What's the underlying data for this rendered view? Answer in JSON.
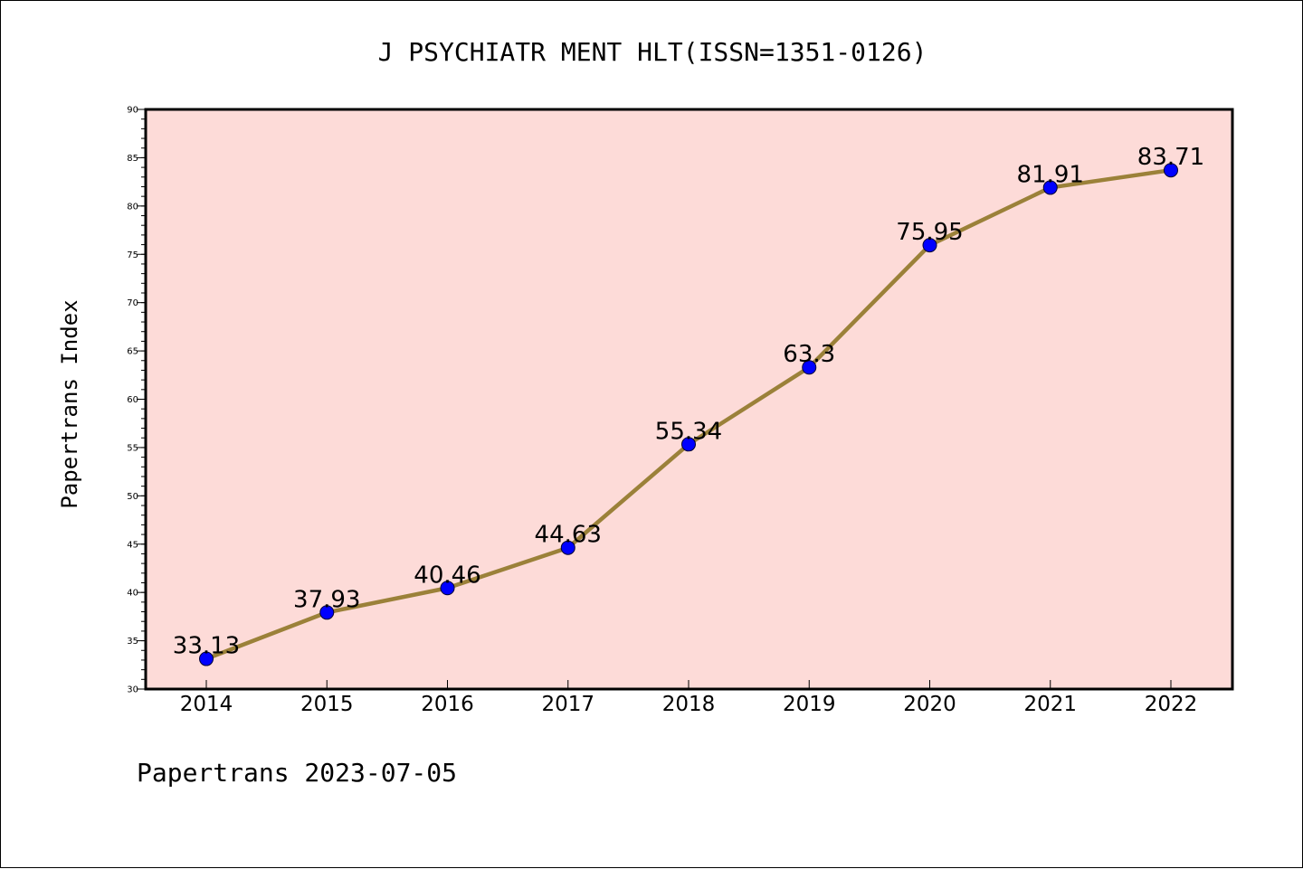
{
  "chart_data": {
    "type": "line",
    "title": "J PSYCHIATR MENT HLT(ISSN=1351-0126)",
    "xlabel": "",
    "ylabel": "Papertrans Index",
    "categories": [
      "2014",
      "2015",
      "2016",
      "2017",
      "2018",
      "2019",
      "2020",
      "2021",
      "2022"
    ],
    "values": [
      33.13,
      37.93,
      40.46,
      44.63,
      55.34,
      63.3,
      75.95,
      81.91,
      83.71
    ],
    "data_labels": [
      "33.13",
      "37.93",
      "40.46",
      "44.63",
      "55.34",
      "63.3",
      "75.95",
      "81.91",
      "83.71"
    ],
    "ylim": [
      30,
      90
    ],
    "yticks": [
      30,
      35,
      40,
      45,
      50,
      55,
      60,
      65,
      70,
      75,
      80,
      85,
      90
    ],
    "ytick_labels": [
      "30",
      "35",
      "40",
      "45",
      "50",
      "55",
      "60",
      "65",
      "70",
      "75",
      "80",
      "85",
      "90"
    ],
    "y_minor_step": 1,
    "grid": false,
    "legend": "none",
    "colors": {
      "plot_background": "#fddbd8",
      "line": "#9b8139",
      "marker_fill": "#0000ff",
      "marker_edge": "#000033",
      "frame": "#000000"
    }
  },
  "footer": {
    "text": "Papertrans 2023-07-05"
  }
}
